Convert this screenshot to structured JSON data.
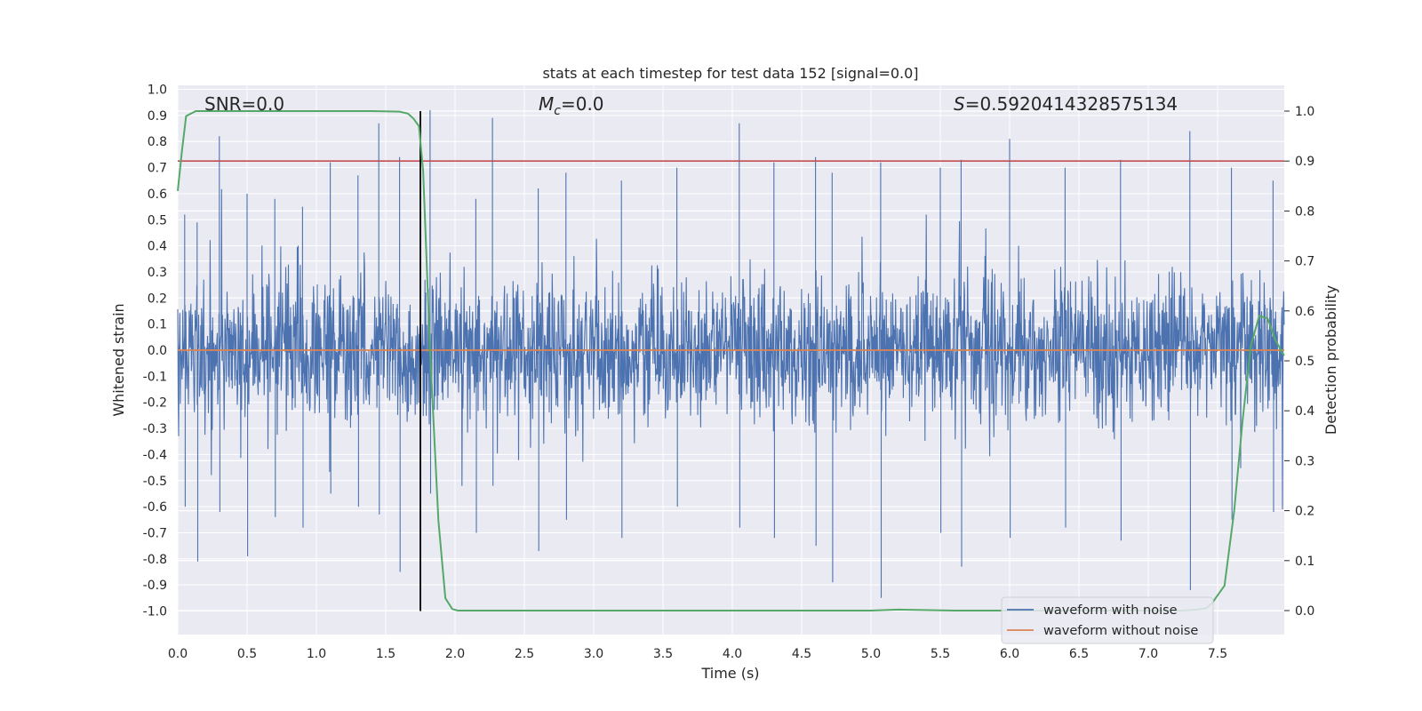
{
  "chart_data": {
    "type": "line",
    "title": "stats at each timestep for test data 152 [signal=0.0]",
    "xlabel": "Time (s)",
    "ylabel": "Whitened strain",
    "y2label": "Detection probability",
    "xlim": [
      0.0,
      8.0
    ],
    "ylim": [
      -1.09,
      1.0
    ],
    "y2lim": [
      -0.05,
      1.04
    ],
    "xticks": [
      "0.0",
      "0.5",
      "1.0",
      "1.5",
      "2.0",
      "2.5",
      "3.0",
      "3.5",
      "4.0",
      "4.5",
      "5.0",
      "5.5",
      "6.0",
      "6.5",
      "7.0",
      "7.5"
    ],
    "yticks": [
      "1.0",
      "0.9",
      "0.8",
      "0.7",
      "0.6",
      "0.5",
      "0.4",
      "0.3",
      "0.2",
      "0.1",
      "0.0",
      "-0.1",
      "-0.2",
      "-0.3",
      "-0.4",
      "-0.5",
      "-0.6",
      "-0.7",
      "-0.8",
      "-0.9",
      "-1.0"
    ],
    "y2ticks": [
      "1.0",
      "0.9",
      "0.8",
      "0.7",
      "0.6",
      "0.5",
      "0.4",
      "0.3",
      "0.2",
      "0.1",
      "0.0"
    ],
    "annotations": {
      "snr_label": "SNR=0.0",
      "mc_symbol": "M",
      "mc_subscript": "c",
      "mc_value": "=0.0",
      "s_symbol": "S",
      "s_value": "=0.5920414328575134"
    },
    "threshold": {
      "value": 0.9,
      "axis": "y2",
      "color": "#c44e52"
    },
    "vertical_marker": {
      "x": 1.75,
      "color": "#000000"
    },
    "legend": {
      "position": "lower right",
      "entries": [
        {
          "label": "waveform with noise",
          "color": "#4c72b0"
        },
        {
          "label": "waveform without noise",
          "color": "#dd8452"
        }
      ]
    },
    "series": [
      {
        "name": "waveform with noise",
        "color": "#4c72b0",
        "kind": "noise",
        "note_rendering": "dense noise; peaks listed",
        "peaks": [
          [
            0.05,
            0.52,
            -0.6
          ],
          [
            0.14,
            0.49,
            -0.81
          ],
          [
            0.3,
            0.82,
            -0.62
          ],
          [
            0.5,
            0.6,
            -0.79
          ],
          [
            0.7,
            0.58,
            -0.64
          ],
          [
            0.9,
            0.55,
            -0.68
          ],
          [
            1.1,
            0.72,
            -0.55
          ],
          [
            1.3,
            0.67,
            -0.6
          ],
          [
            1.45,
            0.87,
            -0.63
          ],
          [
            1.6,
            0.74,
            -0.85
          ],
          [
            1.82,
            0.92,
            -0.55
          ],
          [
            2.15,
            0.58,
            -0.7
          ],
          [
            2.27,
            0.89,
            -0.52
          ],
          [
            2.6,
            0.62,
            -0.77
          ],
          [
            2.8,
            0.68,
            -0.65
          ],
          [
            3.2,
            0.65,
            -0.72
          ],
          [
            3.6,
            0.7,
            -0.6
          ],
          [
            4.05,
            0.87,
            -0.68
          ],
          [
            4.3,
            0.72,
            -0.72
          ],
          [
            4.6,
            0.74,
            -0.75
          ],
          [
            4.72,
            0.68,
            -0.89
          ],
          [
            5.07,
            0.72,
            -0.95
          ],
          [
            5.5,
            0.7,
            -0.7
          ],
          [
            5.65,
            0.73,
            -0.83
          ],
          [
            6.0,
            0.81,
            -0.72
          ],
          [
            6.4,
            0.7,
            -0.68
          ],
          [
            6.8,
            0.73,
            -0.73
          ],
          [
            7.3,
            0.84,
            -0.92
          ],
          [
            7.6,
            0.7,
            -0.65
          ],
          [
            7.9,
            0.65,
            -0.62
          ]
        ]
      },
      {
        "name": "waveform without noise",
        "color": "#dd8452",
        "x": [
          0.0,
          8.0
        ],
        "y": [
          0.0,
          0.0
        ]
      },
      {
        "name": "detection probability",
        "color": "#55a868",
        "axis": "y2",
        "x": [
          0.0,
          0.03,
          0.06,
          0.13,
          0.3,
          0.6,
          1.0,
          1.4,
          1.6,
          1.66,
          1.7,
          1.74,
          1.77,
          1.82,
          1.88,
          1.93,
          1.98,
          2.02,
          2.1,
          3.0,
          4.0,
          5.0,
          5.2,
          5.6,
          6.0,
          6.5,
          7.0,
          7.25,
          7.35,
          7.42,
          7.46,
          7.55,
          7.62,
          7.68,
          7.74,
          7.8,
          7.86,
          7.92,
          7.98
        ],
        "y": [
          0.84,
          0.92,
          0.99,
          1.0,
          1.0,
          1.0,
          1.0,
          1.0,
          0.999,
          0.995,
          0.985,
          0.97,
          0.88,
          0.52,
          0.18,
          0.025,
          0.003,
          0.0,
          0.0,
          0.0,
          0.0,
          0.0,
          0.002,
          0.0,
          0.0,
          0.0,
          0.0,
          0.0,
          0.002,
          0.005,
          0.015,
          0.05,
          0.2,
          0.38,
          0.53,
          0.59,
          0.585,
          0.54,
          0.51
        ]
      }
    ]
  }
}
